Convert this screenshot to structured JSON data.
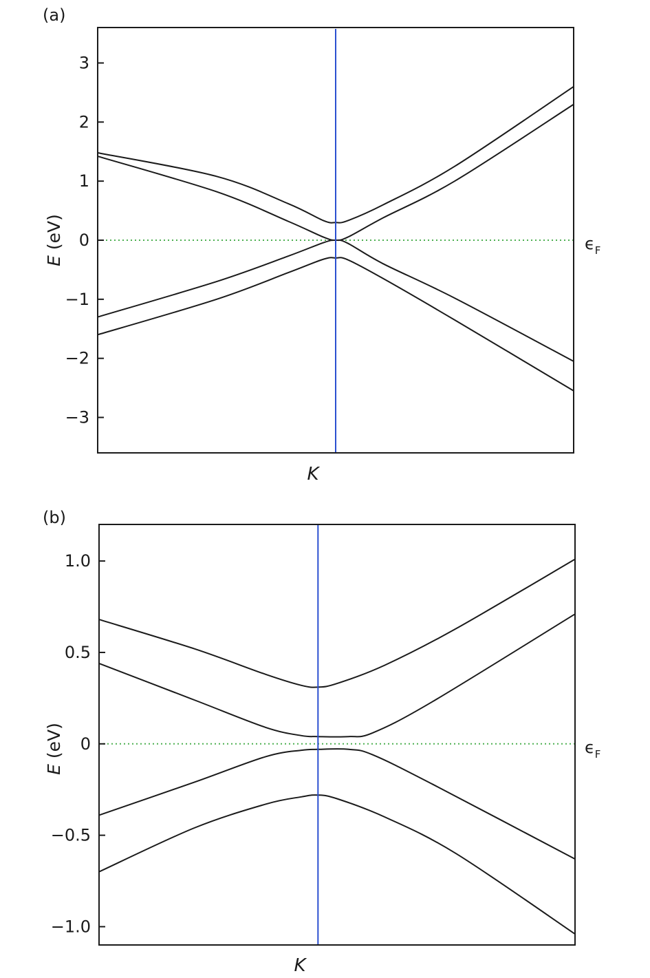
{
  "chart_data": [
    {
      "type": "line",
      "panel_label": "(a)",
      "ylabel_symbol": "E",
      "ylabel_unit": " (eV)",
      "xtick_label": "K",
      "fermi_symbol": "ϵ",
      "fermi_subscript": "F",
      "ylim": [
        -3.6,
        3.6
      ],
      "xlim": [
        -1,
        1
      ],
      "yticks": [
        3,
        2,
        1,
        0,
        -1,
        -2,
        -3
      ],
      "ytick_labels": [
        "3",
        "2",
        "1",
        "0",
        "−1",
        "−2",
        "−3"
      ],
      "grid": false,
      "vertical_line": {
        "x": 0,
        "color": "#2a4fd0"
      },
      "fermi_level": {
        "y": 0,
        "color": "#4caf50"
      },
      "band_color": "#1a1a1a",
      "series": [
        {
          "x": [
            -1,
            -0.5,
            -0.2,
            -0.05,
            0,
            0.05,
            0.2,
            0.5,
            1
          ],
          "y": [
            1.48,
            1.08,
            0.62,
            0.33,
            0.3,
            0.33,
            0.6,
            1.25,
            2.6
          ]
        },
        {
          "x": [
            -1,
            -0.5,
            -0.2,
            -0.05,
            0,
            0.05,
            0.2,
            0.5,
            1
          ],
          "y": [
            1.42,
            0.82,
            0.32,
            0.05,
            0.0,
            0.05,
            0.38,
            1.0,
            2.3
          ]
        },
        {
          "x": [
            -1,
            -0.5,
            -0.2,
            -0.05,
            0,
            0.05,
            0.2,
            0.5,
            1
          ],
          "y": [
            -1.3,
            -0.7,
            -0.27,
            -0.04,
            0.0,
            -0.05,
            -0.4,
            -0.98,
            -2.05
          ]
        },
        {
          "x": [
            -1,
            -0.5,
            -0.2,
            -0.05,
            0,
            0.05,
            0.2,
            0.5,
            1
          ],
          "y": [
            -1.6,
            -1.0,
            -0.55,
            -0.32,
            -0.3,
            -0.33,
            -0.65,
            -1.35,
            -2.55
          ]
        }
      ]
    },
    {
      "type": "line",
      "panel_label": "(b)",
      "ylabel_symbol": "E",
      "ylabel_unit": " (eV)",
      "xtick_label": "K",
      "fermi_symbol": "ϵ",
      "fermi_subscript": "F",
      "ylim": [
        -1.1,
        1.2
      ],
      "xlim": [
        -1,
        1
      ],
      "yticks": [
        1.0,
        0.5,
        0,
        -0.5,
        -1.0
      ],
      "ytick_labels": [
        "1.0",
        "0.5",
        "0",
        "−0.5",
        "−1.0"
      ],
      "grid": false,
      "vertical_line": {
        "x": -0.08,
        "color": "#2a4fd0"
      },
      "fermi_level": {
        "y": 0,
        "color": "#4caf50"
      },
      "band_color": "#1a1a1a",
      "series": [
        {
          "x": [
            -1,
            -0.6,
            -0.3,
            -0.15,
            -0.08,
            0,
            0.2,
            0.5,
            1
          ],
          "y": [
            0.68,
            0.52,
            0.38,
            0.32,
            0.31,
            0.33,
            0.43,
            0.63,
            1.01
          ]
        },
        {
          "x": [
            -1,
            -0.6,
            -0.3,
            -0.15,
            -0.08,
            0.05,
            0.15,
            0.4,
            1
          ],
          "y": [
            0.44,
            0.24,
            0.09,
            0.045,
            0.04,
            0.04,
            0.06,
            0.23,
            0.71
          ]
        },
        {
          "x": [
            -1,
            -0.6,
            -0.3,
            -0.15,
            -0.08,
            0.05,
            0.15,
            0.4,
            1
          ],
          "y": [
            -0.39,
            -0.21,
            -0.07,
            -0.035,
            -0.03,
            -0.03,
            -0.06,
            -0.22,
            -0.63
          ]
        },
        {
          "x": [
            -1,
            -0.6,
            -0.3,
            -0.15,
            -0.08,
            0,
            0.2,
            0.5,
            1
          ],
          "y": [
            -0.7,
            -0.46,
            -0.33,
            -0.29,
            -0.28,
            -0.3,
            -0.4,
            -0.6,
            -1.04
          ]
        }
      ]
    }
  ]
}
